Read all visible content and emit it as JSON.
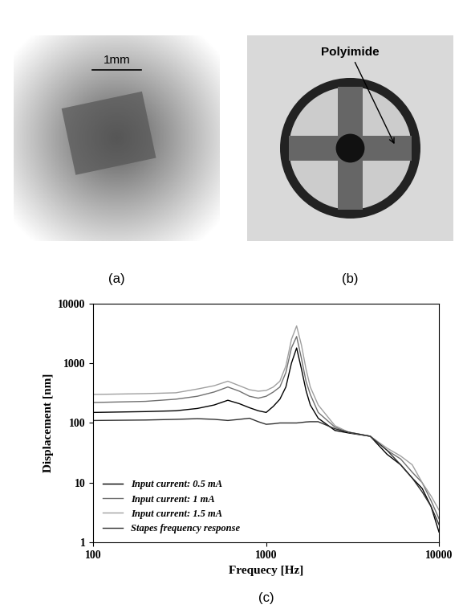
{
  "panels": [
    {
      "label": "(a)",
      "scale_bar": "1mm"
    },
    {
      "label": "(b)",
      "annotation": "Polyimide"
    }
  ],
  "chart_data": {
    "type": "line",
    "panel_label": "(c)",
    "x_label": "Frequecy [Hz]",
    "y_label": "Displacement [nm]",
    "log": true,
    "grid": false,
    "legend": "lower left",
    "xlim": [
      100,
      10000
    ],
    "ylim": [
      1,
      10000
    ],
    "xticks": [
      100,
      1000,
      10000
    ],
    "yticks": [
      1,
      10,
      100,
      1000,
      10000
    ],
    "x": [
      100,
      200,
      300,
      400,
      500,
      600,
      700,
      800,
      900,
      1000,
      1100,
      1200,
      1300,
      1400,
      1500,
      1600,
      1700,
      1800,
      2000,
      2500,
      3000,
      4000,
      5000,
      6000,
      7000,
      8000,
      9000,
      10000
    ],
    "series": [
      {
        "name": "Input current: 0.5 mA",
        "color": "#000000",
        "values": [
          150,
          155,
          160,
          175,
          200,
          240,
          210,
          180,
          160,
          150,
          190,
          250,
          400,
          1000,
          1800,
          800,
          350,
          200,
          120,
          75,
          68,
          60,
          30,
          20,
          12,
          8,
          4,
          1.5
        ]
      },
      {
        "name": "Input current: 1 mA",
        "color": "#707070",
        "values": [
          220,
          230,
          250,
          280,
          330,
          400,
          340,
          280,
          260,
          280,
          330,
          400,
          700,
          1800,
          2800,
          1200,
          500,
          300,
          150,
          85,
          70,
          60,
          35,
          25,
          15,
          10,
          5,
          2.5
        ]
      },
      {
        "name": "Input current: 1.5 mA",
        "color": "#a0a0a0",
        "values": [
          300,
          310,
          320,
          370,
          420,
          500,
          420,
          360,
          340,
          350,
          400,
          500,
          900,
          2500,
          4200,
          2000,
          800,
          400,
          200,
          90,
          70,
          60,
          38,
          28,
          20,
          10,
          6,
          3.5
        ]
      },
      {
        "name": "Stapes frequency response",
        "color": "#303030",
        "values": [
          110,
          112,
          115,
          118,
          115,
          110,
          115,
          120,
          105,
          95,
          97,
          100,
          100,
          100,
          100,
          102,
          104,
          105,
          105,
          80,
          70,
          60,
          35,
          20,
          12,
          7,
          4,
          2
        ]
      }
    ]
  }
}
